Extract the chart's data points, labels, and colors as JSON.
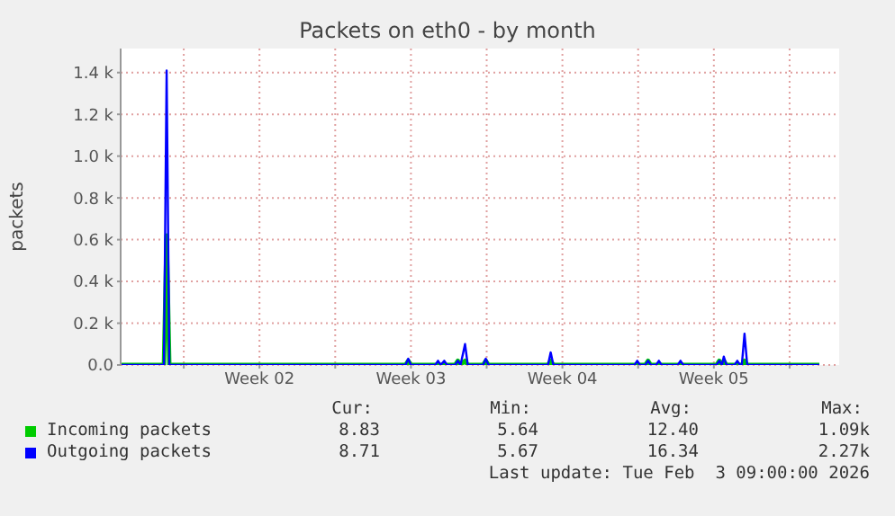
{
  "chart_data": {
    "type": "line",
    "title": "Packets on eth0 - by month",
    "ylabel": "packets",
    "x": [
      "2026-01-02T02:00",
      "2026-01-04T02:00",
      "2026-01-04T05:00",
      "2026-01-04T08:00",
      "2026-01-15T06:00",
      "2026-01-15T09:00",
      "2026-01-15T12:00",
      "2026-01-16T15:00",
      "2026-01-16T18:00",
      "2026-01-16T21:00",
      "2026-01-17T01:00",
      "2026-01-17T04:00",
      "2026-01-17T13:00",
      "2026-01-17T16:00",
      "2026-01-17T19:00",
      "2026-01-18T00:00",
      "2026-01-18T03:00",
      "2026-01-18T20:00",
      "2026-01-18T23:00",
      "2026-01-19T02:00",
      "2026-01-21T20:00",
      "2026-01-21T23:00",
      "2026-01-22T02:00",
      "2026-01-25T20:00",
      "2026-01-25T23:00",
      "2026-01-26T02:00",
      "2026-01-26T08:00",
      "2026-01-26T11:00",
      "2026-01-26T14:00",
      "2026-01-26T20:00",
      "2026-01-26T23:00",
      "2026-01-27T02:00",
      "2026-01-27T20:00",
      "2026-01-27T23:00",
      "2026-01-28T02:00",
      "2026-01-29T15:00",
      "2026-01-29T18:00",
      "2026-01-29T21:00",
      "2026-01-29T23:00",
      "2026-01-30T02:00",
      "2026-01-30T11:00",
      "2026-01-30T14:00",
      "2026-01-30T17:00",
      "2026-01-30T19:00",
      "2026-01-30T22:00",
      "2026-01-31T01:00",
      "2026-02-03T09:00"
    ],
    "series": [
      {
        "name": "Incoming packets",
        "color": "#00cc00",
        "values": [
          0,
          0,
          620,
          0,
          0,
          20,
          0,
          0,
          0,
          0,
          0,
          0,
          0,
          20,
          0,
          20,
          0,
          0,
          20,
          0,
          0,
          20,
          0,
          0,
          0,
          0,
          0,
          20,
          0,
          0,
          0,
          0,
          0,
          0,
          0,
          0,
          20,
          0,
          20,
          0,
          0,
          0,
          0,
          0,
          20,
          0,
          0
        ]
      },
      {
        "name": "Outgoing packets",
        "color": "#0000ff",
        "values": [
          0,
          0,
          1410,
          0,
          0,
          30,
          0,
          0,
          20,
          0,
          20,
          0,
          0,
          20,
          0,
          100,
          0,
          0,
          30,
          0,
          0,
          60,
          0,
          0,
          20,
          0,
          0,
          20,
          0,
          0,
          20,
          0,
          0,
          20,
          0,
          0,
          20,
          0,
          40,
          0,
          0,
          20,
          0,
          0,
          150,
          0,
          0
        ]
      }
    ],
    "xlim": [
      "2026-01-02T02:00",
      "2026-02-04T07:00"
    ],
    "xticks": [
      {
        "value": "2026-01-05T00:00",
        "label": null
      },
      {
        "value": "2026-01-08T12:00",
        "label": "Week 02"
      },
      {
        "value": "2026-01-12T00:00",
        "label": null
      },
      {
        "value": "2026-01-15T12:00",
        "label": "Week 03"
      },
      {
        "value": "2026-01-19T00:00",
        "label": null
      },
      {
        "value": "2026-01-22T12:00",
        "label": "Week 04"
      },
      {
        "value": "2026-01-26T00:00",
        "label": null
      },
      {
        "value": "2026-01-29T12:00",
        "label": "Week 05"
      },
      {
        "value": "2026-02-02T00:00",
        "label": null
      }
    ],
    "ylim": [
      0,
      1515
    ],
    "yticks": [
      {
        "value": 0,
        "label": "0.0"
      },
      {
        "value": 200,
        "label": "0.2 k"
      },
      {
        "value": 400,
        "label": "0.4 k"
      },
      {
        "value": 600,
        "label": "0.6 k"
      },
      {
        "value": 800,
        "label": "0.8 k"
      },
      {
        "value": 1000,
        "label": "1.0 k"
      },
      {
        "value": 1200,
        "label": "1.2 k"
      },
      {
        "value": 1400,
        "label": "1.4 k"
      }
    ],
    "grid": true,
    "legend": "bottom",
    "marker": "none",
    "line_style": "solid",
    "annotations": [
      "Cur:",
      "Min:",
      "Avg:",
      "Max:",
      "8.83",
      "5.64",
      "12.40",
      "1.09k",
      "8.71",
      "5.67",
      "16.34",
      "2.27k",
      "Last update: Tue Feb  3 09:00:00 2026"
    ]
  }
}
